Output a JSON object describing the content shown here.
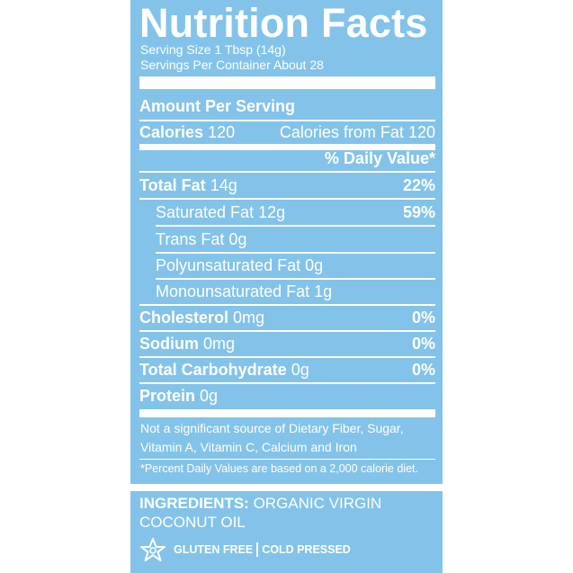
{
  "label": {
    "title": "Nutrition Facts",
    "serving_size": "Serving Size 1 Tbsp (14g)",
    "servings_per_container": "Servings Per Container About 28",
    "amount_per_serving": "Amount Per Serving",
    "calories_label": "Calories",
    "calories_value": "120",
    "calories_from_fat_label": "Calories from Fat",
    "calories_from_fat_value": "120",
    "daily_value_header": "% Daily Value*",
    "nutrients": [
      {
        "name": "Total Fat",
        "amount": "14g",
        "dv": "22%"
      },
      {
        "name": "Saturated Fat",
        "amount": "12g",
        "dv": "59%"
      },
      {
        "name": "Trans Fat",
        "amount": "0g",
        "dv": ""
      },
      {
        "name": "Polyunsaturated Fat",
        "amount": "0g",
        "dv": ""
      },
      {
        "name": "Monounsaturated Fat",
        "amount": "1g",
        "dv": ""
      },
      {
        "name": "Cholesterol",
        "amount": "0mg",
        "dv": "0%"
      },
      {
        "name": "Sodium",
        "amount": "0mg",
        "dv": "0%"
      },
      {
        "name": "Total Carbohydrate",
        "amount": "0g",
        "dv": "0%"
      },
      {
        "name": "Protein",
        "amount": "0g",
        "dv": ""
      }
    ],
    "not_significant_note": "Not a significant source of Dietary Fiber, Sugar, Vitamin A, Vitamin C, Calcium and Iron",
    "daily_values_footnote": "*Percent Daily Values are based on a 2,000 calorie diet.",
    "ingredients_label": "INGREDIENTS:",
    "ingredients_text": "ORGANIC VIRGIN COCONUT OIL",
    "badge_gluten_free": "GLUTEN FREE",
    "badge_cold_pressed": "COLD PRESSED",
    "star_icon": "star-icon"
  },
  "colors": {
    "label_background": "#83c3e9",
    "text": "#ffffff"
  }
}
